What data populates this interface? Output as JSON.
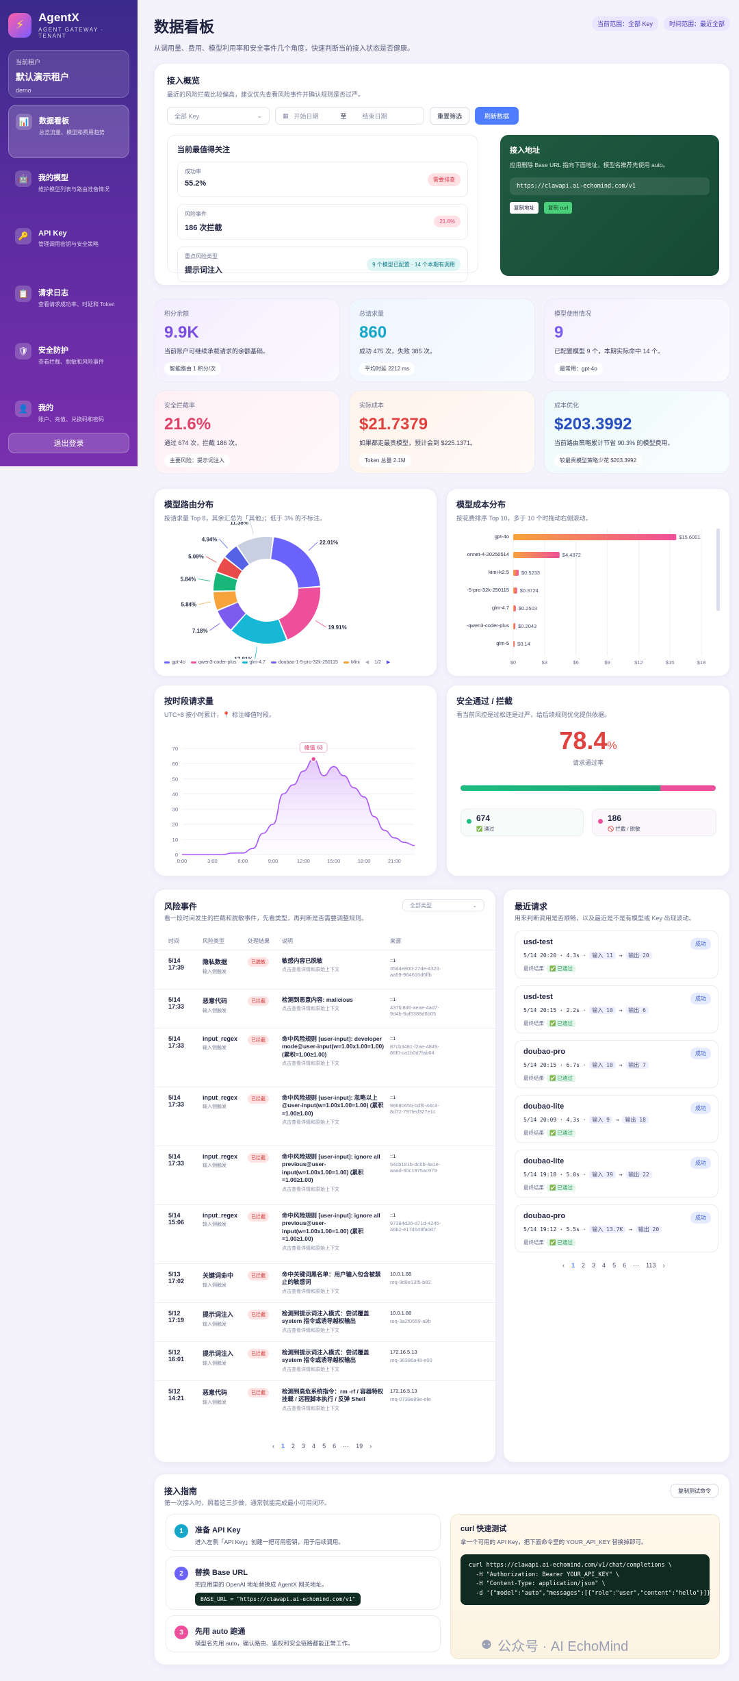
{
  "sidebar": {
    "brand": "AgentX",
    "brand_sub": "AGENT GATEWAY · TENANT",
    "tenant_label": "当前租户",
    "tenant_name": "默认演示租户",
    "tenant_slug": "demo",
    "items": [
      {
        "title": "数据看板",
        "desc": "总览流量、模型和费用趋势",
        "icon": "📊"
      },
      {
        "title": "我的模型",
        "desc": "维护模型列表与路由准备情况",
        "icon": "🤖"
      },
      {
        "title": "API Key",
        "desc": "管理调用密钥与安全策略",
        "icon": "🔑"
      },
      {
        "title": "请求日志",
        "desc": "查看请求成功率、时延和 Token",
        "icon": "📋"
      },
      {
        "title": "安全防护",
        "desc": "查看拦截、脱敏和风险事件",
        "icon": "🛡"
      },
      {
        "title": "我的",
        "desc": "账户、充值、兑换码和密码",
        "icon": "👤"
      }
    ],
    "logout": "退出登录"
  },
  "header": {
    "title": "数据看板",
    "subtitle": "从调用量、费用、模型利用率和安全事件几个角度，快速判断当前接入状态是否健康。",
    "badge_scope": "当前范围：全部 Key",
    "badge_time": "时间范围：最近全部"
  },
  "overview": {
    "title": "接入概览",
    "subtitle": "最近的风险拦截比较偏高，建议优先查看风险事件并确认规则是否过严。",
    "key_select": "全部 Key",
    "start_date": "开始日期",
    "to": "至",
    "end_date": "结束日期",
    "reset": "重置筛选",
    "refresh": "刷新数据",
    "focus": {
      "title": "当前最值得关注",
      "items": [
        {
          "label": "成功率",
          "value": "55.2%",
          "tag": "需要排查"
        },
        {
          "label": "风险事件",
          "value": "186 次拦截",
          "tag": "21.6%"
        },
        {
          "label": "重点风险类型",
          "value": "提示词注入",
          "tag": "9 个模型已配置 · 14 个本期有调用"
        }
      ]
    },
    "access": {
      "title": "接入地址",
      "desc": "应用删除 Base URL 指向下面地址，模型名推荐先使用 auto。",
      "url": "https://clawapi.ai-echomind.com/v1",
      "copy": "复制地址",
      "curl": "复制 curl"
    }
  },
  "stats": [
    {
      "label": "积分余额",
      "value": "9.9K",
      "desc": "当前账户可继续承载请求的余额基础。",
      "chip": "智能路由 1 积分/次"
    },
    {
      "label": "总请求量",
      "value": "860",
      "desc": "成功 475 次，失败 385 次。",
      "chip": "平均时延 2212 ms"
    },
    {
      "label": "模型使用情况",
      "value": "9",
      "desc": "已配置模型 9 个，本期实际命中 14 个。",
      "chip": "最常用：gpt-4o"
    },
    {
      "label": "安全拦截率",
      "value": "21.6%",
      "desc": "通过 674 次，拦截 186 次。",
      "chip": "主要风险：提示词注入"
    },
    {
      "label": "实际成本",
      "value": "$21.7379",
      "desc": "如果都走最贵模型，预计会到 $225.1371。",
      "chip": "Token 总量 2.1M"
    },
    {
      "label": "成本优化",
      "value": "$203.3992",
      "desc": "当前路由策略累计节省 90.3% 的模型费用。",
      "chip": "较最贵模型策略少花 $203.3992"
    }
  ],
  "route_chart": {
    "title": "模型路由分布",
    "subtitle": "按请求量 Top 8，其余汇总为「其他」；低于 3% 的不标注。",
    "chart_data": {
      "type": "pie",
      "slices": [
        {
          "name": "gpt-4o",
          "value": 22.01,
          "color": "#6c63ff"
        },
        {
          "name": "qwen3-coder-plus",
          "value": 19.91,
          "color": "#ee4f9a"
        },
        {
          "name": "glm-4.7",
          "value": 17.81,
          "color": "#16b8d6"
        },
        {
          "name": "doubao-1-5-pro-32k-250115",
          "value": 7.18,
          "color": "#7c5cf0"
        },
        {
          "name": "MiniMax",
          "value": 5.84,
          "color": "#f7a33b"
        },
        {
          "name": "seg6",
          "value": 5.84,
          "color": "#19b67a"
        },
        {
          "name": "seg7",
          "value": 5.09,
          "color": "#e94a4a"
        },
        {
          "name": "seg8",
          "value": 4.94,
          "color": "#5562e8"
        },
        {
          "name": "seg9",
          "value": 11.38,
          "color": "#c7cfe0"
        }
      ],
      "labels": [
        "22.01%",
        "19.91%",
        "17.81%",
        "7.18%",
        "5.84%",
        "5.84%",
        "5.09%",
        "4.94%",
        "11.38%"
      ]
    },
    "legend": [
      "gpt-4o",
      "qwen3-coder-plus",
      "glm-4.7",
      "doubao-1-5-pro-32k-250115",
      "Mini"
    ],
    "legend_page": "1/2"
  },
  "cost_chart": {
    "title": "模型成本分布",
    "subtitle": "按花费排序 Top 10，多于 10 个时拖动右侧滚动。",
    "chart_data": {
      "type": "bar",
      "categories": [
        "gpt-4o",
        "onnet-4-20250514",
        "kimi-k2.5",
        "-5-pro-32k-250115",
        "glm-4.7",
        "-qwen3-coder-plus",
        "glm-5"
      ],
      "values": [
        15.6001,
        4.4372,
        0.5233,
        0.3724,
        0.2503,
        0.2043,
        0.14
      ],
      "value_labels": [
        "$15.6001",
        "$4.4372",
        "$0.5233",
        "$0.3724",
        "$0.2503",
        "$0.2043",
        "$0.14"
      ],
      "xticks": [
        "$0",
        "$3",
        "$6",
        "$9",
        "$12",
        "$15",
        "$18"
      ],
      "xlim": [
        0,
        18
      ]
    }
  },
  "hour_chart": {
    "title": "按时段请求量",
    "subtitle": "UTC+8 按小时累计，📍 标注峰值时段。",
    "peak_label": "峰值 63",
    "chart_data": {
      "type": "area",
      "x": [
        0,
        1,
        2,
        3,
        4,
        5,
        6,
        7,
        8,
        9,
        10,
        11,
        12,
        13,
        14,
        15,
        16,
        17,
        18,
        19,
        20,
        21,
        22,
        23
      ],
      "y": [
        0,
        0,
        0,
        0,
        0,
        1,
        1,
        4,
        14,
        20,
        40,
        46,
        55,
        63,
        52,
        58,
        52,
        44,
        38,
        25,
        16,
        11,
        8,
        6
      ],
      "yticks": [
        "0",
        "10",
        "20",
        "30",
        "40",
        "50",
        "60",
        "70"
      ],
      "xticks": [
        "0:00",
        "3:00",
        "6:00",
        "9:00",
        "12:00",
        "15:00",
        "18:00",
        "21:00"
      ],
      "ylim": [
        0,
        70
      ]
    }
  },
  "security": {
    "title": "安全通过 / 拦截",
    "subtitle": "看当前风控是过松还是过严，给后续规则优化提供依据。",
    "rate": "78.4",
    "pct": "%",
    "rate_label": "请求通过率",
    "pass": "674",
    "pass_label": "✅ 通过",
    "block": "186",
    "block_label": "🚫 拦截 / 脱敏",
    "pass_ratio": 0.784
  },
  "risk": {
    "title": "风险事件",
    "subtitle": "看一段时间发生的拦截和脱敏事件，先看类型，再判断是否需要调整规则。",
    "filter": "全部类型",
    "cols": [
      "时间",
      "风险类型",
      "处理结果",
      "说明",
      "来源"
    ],
    "rows": [
      {
        "date": "5/14",
        "time": "17:39",
        "type": "隐私数据",
        "sub": "输入侧触发",
        "res": "已脱敏",
        "desc": "敏感内容已脱敏",
        "desc2": "点击查看详情和原始上下文",
        "src": "::1",
        "src2": "35d4e800-27de-4323-aa59-964616d6ffb"
      },
      {
        "date": "5/14",
        "time": "17:33",
        "type": "恶意代码",
        "sub": "输入侧触发",
        "res": "已拦截",
        "desc": "检测到恶意内容: malicious",
        "desc2": "点击查看详情和原始上下文",
        "src": "::1",
        "src2": "437fc8d6-aeae-4ad7-9d4b-8af5388d6b05"
      },
      {
        "date": "5/14",
        "time": "17:33",
        "type": "input_regex",
        "sub": "输入侧触发",
        "res": "已拦截",
        "desc": "命中风险规则 [user-input]: developer mode@user-input(w=1.00x1.00=1.00) (累积=1.00≥1.00)",
        "desc2": "点击查看详情和原始上下文",
        "src": "::1",
        "src2": "87cb3481-f2ae-4849-86f0-ca1b0d7fab64"
      },
      {
        "date": "5/14",
        "time": "17:33",
        "type": "input_regex",
        "sub": "输入侧触发",
        "res": "已拦截",
        "desc": "命中风险规则 [user-input]: 忽略以上@user-input(w=1.00x1.00=1.00) (累积=1.00≥1.00)",
        "desc2": "点击查看详情和原始上下文",
        "src": "::1",
        "src2": "9868065b-bdf6-44c4-8d72-797fed327e1c"
      },
      {
        "date": "5/14",
        "time": "17:33",
        "type": "input_regex",
        "sub": "输入侧触发",
        "res": "已拦截",
        "desc": "命中风险规则 [user-input]: ignore all previous@user-input(w=1.00x1.00=1.00) (累积=1.00≥1.00)",
        "desc2": "点击查看详情和原始上下文",
        "src": "::1",
        "src2": "54cb181b-dc0b-4a1e-aaad-30c1975ac979"
      },
      {
        "date": "5/14",
        "time": "15:06",
        "type": "input_regex",
        "sub": "输入侧触发",
        "res": "已拦截",
        "desc": "命中风险规则 [user-input]: ignore all previous@user-input(w=1.00x1.00=1.00) (累积=1.00≥1.00)",
        "desc2": "点击查看详情和原始上下文",
        "src": "::1",
        "src2": "97384d26-d71d-4245-a6b2-e174649fa0d7"
      },
      {
        "date": "5/13",
        "time": "17:02",
        "type": "关键词命中",
        "sub": "输入侧触发",
        "res": "已拦截",
        "desc": "命中关键词黑名单：用户输入包含被禁止的敏感词",
        "desc2": "点击查看详情和原始上下文",
        "src": "10.0.1.88",
        "src2": "req-9d8e13f5-b82"
      },
      {
        "date": "5/12",
        "time": "17:19",
        "type": "提示词注入",
        "sub": "输入侧触发",
        "res": "已拦截",
        "desc": "检测到提示词注入模式：尝试覆盖 system 指令或诱导越权输出",
        "desc2": "点击查看详情和原始上下文",
        "src": "10.0.1.88",
        "src2": "req-3a2f0659-a9b"
      },
      {
        "date": "5/12",
        "time": "16:01",
        "type": "提示词注入",
        "sub": "输入侧触发",
        "res": "已拦截",
        "desc": "检测到提示词注入模式：尝试覆盖 system 指令或诱导越权输出",
        "desc2": "点击查看详情和原始上下文",
        "src": "172.16.5.13",
        "src2": "req-36386a49-e00"
      },
      {
        "date": "5/12",
        "time": "14:21",
        "type": "恶意代码",
        "sub": "输入侧触发",
        "res": "已拦截",
        "desc": "检测到高危系统指令：rm -rf / 容器特权挂载 / 远程脚本执行 / 反弹 Shell",
        "desc2": "点击查看详情和原始上下文",
        "src": "172.16.5.13",
        "src2": "req-0739e89e-efe"
      }
    ],
    "pager": [
      "‹",
      "1",
      "2",
      "3",
      "4",
      "5",
      "6",
      "···",
      "19",
      "›"
    ]
  },
  "recent": {
    "title": "最近请求",
    "subtitle": "用来判断调用是否顺畅，以及最近是不是有模型或 Key 出现波动。",
    "items": [
      {
        "model": "usd-test",
        "meta": "5/14 20:20 · 4.3s",
        "in": "输入 11",
        "out": "输出 20",
        "status": "成功",
        "res_label": "最终结果",
        "res": "✅ 已通过"
      },
      {
        "model": "usd-test",
        "meta": "5/14 20:15 · 2.2s",
        "in": "输入 10",
        "out": "输出 6",
        "status": "成功",
        "res_label": "最终结果",
        "res": "✅ 已通过"
      },
      {
        "model": "doubao-pro",
        "meta": "5/14 20:15 · 6.7s",
        "in": "输入 10",
        "out": "输出 7",
        "status": "成功",
        "res_label": "最终结果",
        "res": "✅ 已通过"
      },
      {
        "model": "doubao-lite",
        "meta": "5/14 20:09 · 4.3s",
        "in": "输入 9",
        "out": "输出 18",
        "status": "成功",
        "res_label": "最终结果",
        "res": "✅ 已通过"
      },
      {
        "model": "doubao-lite",
        "meta": "5/14 19:18 · 5.0s",
        "in": "输入 39",
        "out": "输出 22",
        "status": "成功",
        "res_label": "最终结果",
        "res": "✅ 已通过"
      },
      {
        "model": "doubao-pro",
        "meta": "5/14 19:12 · 5.5s",
        "in": "输入 13.7K",
        "out": "输出 20",
        "status": "成功",
        "res_label": "最终结果",
        "res": "✅ 已通过"
      }
    ],
    "pager": [
      "‹",
      "1",
      "2",
      "3",
      "4",
      "5",
      "6",
      "···",
      "113",
      "›"
    ]
  },
  "guide": {
    "title": "接入指南",
    "subtitle": "第一次接入时，照着这三步做，通常就能完成最小可用闭环。",
    "copy_btn": "复制测试命令",
    "steps": [
      {
        "n": "1",
        "title": "准备 API Key",
        "desc": "进入左侧「API Key」创建一把可用密钥，用于后续调用。"
      },
      {
        "n": "2",
        "title": "替换 Base URL",
        "desc": "把应用里的 OpenAI 地址替换成 AgentX 网关地址。",
        "code": "BASE_URL = \"https://clawapi.ai-echomind.com/v1\""
      },
      {
        "n": "3",
        "title": "先用 auto 跑通",
        "desc": "模型名先用 auto，确认路由、鉴权和安全链路都能正常工作。"
      }
    ],
    "curl": {
      "title": "curl 快速测试",
      "desc": "拿一个可用的 API Key，把下面命令里的 YOUR_API_KEY 替换掉即可。",
      "lines": [
        "curl https://clawapi.ai-echomind.com/v1/chat/completions \\",
        "  -H \"Authorization: Bearer YOUR_API_KEY\" \\",
        "  -H \"Content-Type: application/json\" \\",
        "  -d '{\"model\":\"auto\",\"messages\":[{\"role\":\"user\",\"content\":\"hello\"}]}'"
      ]
    }
  },
  "watermark": "公众号 · AI EchoMind"
}
